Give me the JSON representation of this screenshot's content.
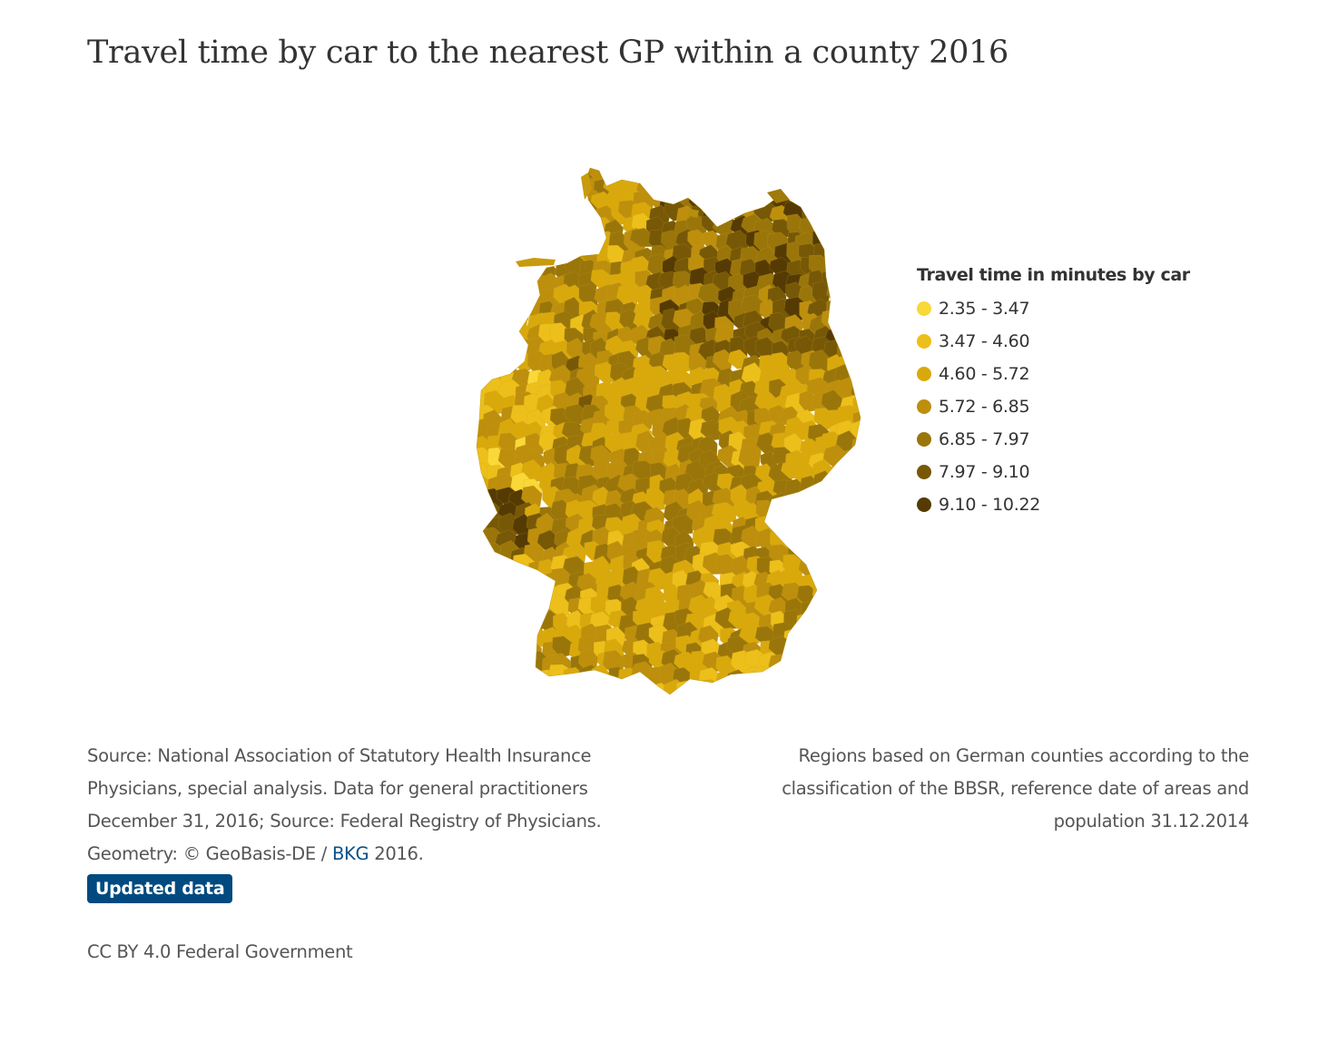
{
  "title": "Travel time by car to the nearest GP within a county 2016",
  "legend": {
    "title": "Travel time in minutes by car",
    "classes": [
      {
        "label": "2.35 - 3.47",
        "color": "#f9d838"
      },
      {
        "label": "3.47 - 4.60",
        "color": "#edbf1a"
      },
      {
        "label": "4.60 - 5.72",
        "color": "#d9a90c"
      },
      {
        "label": "5.72 - 6.85",
        "color": "#bd8f0c"
      },
      {
        "label": "6.85 - 7.97",
        "color": "#9a760a"
      },
      {
        "label": "7.97 - 9.10",
        "color": "#775806"
      },
      {
        "label": "9.10 - 10.22",
        "color": "#553b03"
      }
    ]
  },
  "source": {
    "line1": "Source: National Association of Statutory Health Insurance",
    "line2": "Physicians, special analysis. Data for general practitioners",
    "line3": "December 31, 2016; Source: Federal Registry of Physicians.",
    "geometry_prefix": "Geometry: © GeoBasis-DE /",
    "geometry_link": "BKG",
    "geometry_suffix": "2016.",
    "updated_button": "Updated data"
  },
  "regions_note": {
    "line1": "Regions based on German counties according to the",
    "line2": "classification of the BBSR, reference date of areas and",
    "line3": "population 31.12.2014"
  },
  "license": "CC BY 4.0 Federal Government"
}
